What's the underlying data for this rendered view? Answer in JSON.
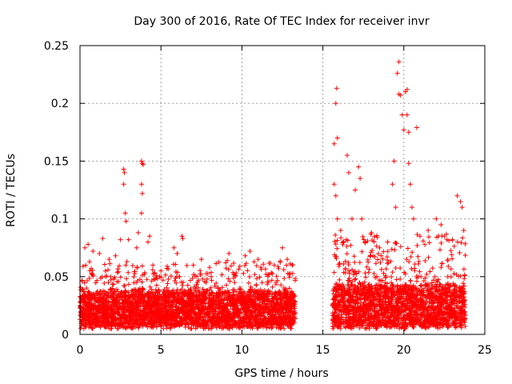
{
  "chart_data": {
    "type": "scatter",
    "title": "Day 300 of 2016, Rate Of TEC Index for receiver invr",
    "xlabel": "GPS time / hours",
    "ylabel": "ROTI / TECUs",
    "xlim": [
      0,
      25
    ],
    "ylim": [
      0,
      0.25
    ],
    "xticks": [
      0,
      5,
      10,
      15,
      20,
      25
    ],
    "xtick_labels": [
      "0",
      "5",
      "10",
      "15",
      "20",
      "25"
    ],
    "yticks": [
      0,
      0.05,
      0.1,
      0.15,
      0.2,
      0.25
    ],
    "ytick_labels": [
      "0",
      "0.05",
      "0.1",
      "0.15",
      "0.2",
      "0.25"
    ],
    "grid": true,
    "marker": "plus",
    "color": "#ff0000",
    "series": [
      {
        "name": "ROTI",
        "segments": [
          {
            "x_range": [
              0,
              13.3
            ],
            "base_range": [
              0.01,
              0.04
            ],
            "typical_max": 0.065
          },
          {
            "x_range": [
              15.6,
              23.8
            ],
            "base_range": [
              0.01,
              0.045
            ],
            "typical_max": 0.09
          }
        ],
        "points": [
          [
            0.3,
            0.075
          ],
          [
            0.5,
            0.078
          ],
          [
            0.8,
            0.072
          ],
          [
            1.2,
            0.07
          ],
          [
            1.4,
            0.083
          ],
          [
            1.8,
            0.065
          ],
          [
            2.2,
            0.068
          ],
          [
            2.5,
            0.082
          ],
          [
            2.7,
            0.143
          ],
          [
            2.75,
            0.14
          ],
          [
            2.7,
            0.13
          ],
          [
            2.8,
            0.105
          ],
          [
            2.85,
            0.098
          ],
          [
            3.0,
            0.082
          ],
          [
            3.5,
            0.075
          ],
          [
            3.6,
            0.088
          ],
          [
            3.8,
            0.15
          ],
          [
            3.85,
            0.148
          ],
          [
            3.9,
            0.147
          ],
          [
            3.8,
            0.13
          ],
          [
            3.85,
            0.122
          ],
          [
            3.8,
            0.105
          ],
          [
            4.2,
            0.08
          ],
          [
            4.3,
            0.085
          ],
          [
            4.5,
            0.06
          ],
          [
            5.0,
            0.055
          ],
          [
            5.8,
            0.075
          ],
          [
            6.0,
            0.07
          ],
          [
            6.3,
            0.085
          ],
          [
            6.35,
            0.083
          ],
          [
            7.0,
            0.06
          ],
          [
            7.5,
            0.065
          ],
          [
            8.0,
            0.058
          ],
          [
            9.0,
            0.062
          ],
          [
            9.2,
            0.07
          ],
          [
            10.2,
            0.068
          ],
          [
            10.5,
            0.072
          ],
          [
            11.0,
            0.065
          ],
          [
            12.0,
            0.06
          ],
          [
            12.5,
            0.075
          ],
          [
            12.8,
            0.065
          ],
          [
            13.1,
            0.06
          ],
          [
            15.7,
            0.165
          ],
          [
            15.8,
            0.2
          ],
          [
            15.85,
            0.213
          ],
          [
            15.9,
            0.17
          ],
          [
            15.7,
            0.13
          ],
          [
            15.8,
            0.12
          ],
          [
            15.9,
            0.1
          ],
          [
            16.1,
            0.09
          ],
          [
            16.5,
            0.155
          ],
          [
            16.6,
            0.14
          ],
          [
            16.8,
            0.1
          ],
          [
            17.0,
            0.125
          ],
          [
            17.2,
            0.145
          ],
          [
            17.3,
            0.135
          ],
          [
            17.4,
            0.1
          ],
          [
            17.6,
            0.08
          ],
          [
            18.0,
            0.088
          ],
          [
            18.5,
            0.075
          ],
          [
            19.0,
            0.08
          ],
          [
            19.3,
            0.13
          ],
          [
            19.4,
            0.15
          ],
          [
            19.5,
            0.11
          ],
          [
            19.6,
            0.226
          ],
          [
            19.7,
            0.236
          ],
          [
            19.7,
            0.208
          ],
          [
            19.8,
            0.207
          ],
          [
            19.9,
            0.19
          ],
          [
            20.0,
            0.177
          ],
          [
            20.1,
            0.21
          ],
          [
            20.2,
            0.212
          ],
          [
            20.2,
            0.19
          ],
          [
            20.3,
            0.175
          ],
          [
            20.3,
            0.148
          ],
          [
            20.4,
            0.13
          ],
          [
            20.5,
            0.11
          ],
          [
            20.6,
            0.1
          ],
          [
            20.8,
            0.179
          ],
          [
            21.0,
            0.085
          ],
          [
            21.5,
            0.09
          ],
          [
            22.0,
            0.1
          ],
          [
            22.3,
            0.095
          ],
          [
            22.5,
            0.085
          ],
          [
            23.0,
            0.082
          ],
          [
            23.3,
            0.12
          ],
          [
            23.5,
            0.115
          ],
          [
            23.6,
            0.11
          ],
          [
            23.7,
            0.09
          ]
        ]
      }
    ]
  }
}
